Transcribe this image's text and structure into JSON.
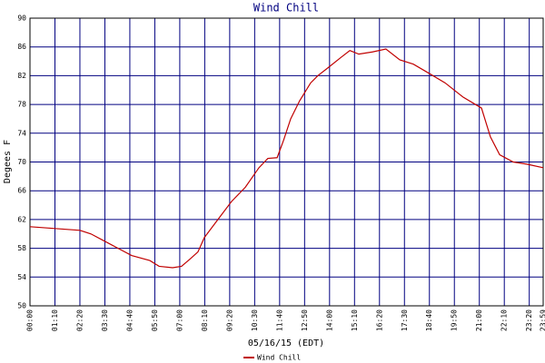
{
  "chart_data": {
    "type": "line",
    "title": "Wind Chill",
    "x_label": "05/16/15 (EDT)",
    "y_label": "Degees F",
    "x": [
      0,
      140,
      171,
      209,
      247,
      285,
      336,
      362,
      400,
      425,
      451,
      471,
      489,
      527,
      565,
      604,
      642,
      667,
      693,
      711,
      731,
      756,
      787,
      807,
      833,
      871,
      897,
      922,
      960,
      998,
      1037,
      1075,
      1113,
      1164,
      1215,
      1266,
      1291,
      1317,
      1355,
      1393,
      1439
    ],
    "series": [
      {
        "name": "Wind Chill",
        "color": "#c00000",
        "values": [
          61,
          60.5,
          60,
          59,
          58,
          57,
          56.3,
          55.5,
          55.3,
          55.5,
          56.6,
          57.5,
          59.5,
          62,
          64.5,
          66.5,
          69.2,
          70.5,
          70.6,
          73,
          76,
          78.5,
          81,
          82,
          83,
          84.5,
          85.5,
          85,
          85.3,
          85.7,
          84.2,
          83.6,
          82.5,
          81,
          79,
          77.5,
          73.5,
          71,
          70,
          69.7,
          69.2
        ]
      }
    ],
    "xlim": [
      0,
      1439
    ],
    "xticks": [
      {
        "value": 0,
        "label": "00:00"
      },
      {
        "value": 70,
        "label": "01:10"
      },
      {
        "value": 140,
        "label": "02:20"
      },
      {
        "value": 210,
        "label": "03:30"
      },
      {
        "value": 280,
        "label": "04:40"
      },
      {
        "value": 350,
        "label": "05:50"
      },
      {
        "value": 420,
        "label": "07:00"
      },
      {
        "value": 490,
        "label": "08:10"
      },
      {
        "value": 560,
        "label": "09:20"
      },
      {
        "value": 630,
        "label": "10:30"
      },
      {
        "value": 700,
        "label": "11:40"
      },
      {
        "value": 770,
        "label": "12:50"
      },
      {
        "value": 840,
        "label": "14:00"
      },
      {
        "value": 910,
        "label": "15:10"
      },
      {
        "value": 980,
        "label": "16:20"
      },
      {
        "value": 1050,
        "label": "17:30"
      },
      {
        "value": 1120,
        "label": "18:40"
      },
      {
        "value": 1190,
        "label": "19:50"
      },
      {
        "value": 1260,
        "label": "21:00"
      },
      {
        "value": 1330,
        "label": "22:10"
      },
      {
        "value": 1400,
        "label": "23:20"
      },
      {
        "value": 1439,
        "label": "23:59"
      }
    ],
    "ylim": [
      50,
      90
    ],
    "yticks": [
      50,
      54,
      58,
      62,
      66,
      70,
      74,
      78,
      82,
      86,
      90
    ],
    "grid": true,
    "grid_color": "#000080"
  }
}
